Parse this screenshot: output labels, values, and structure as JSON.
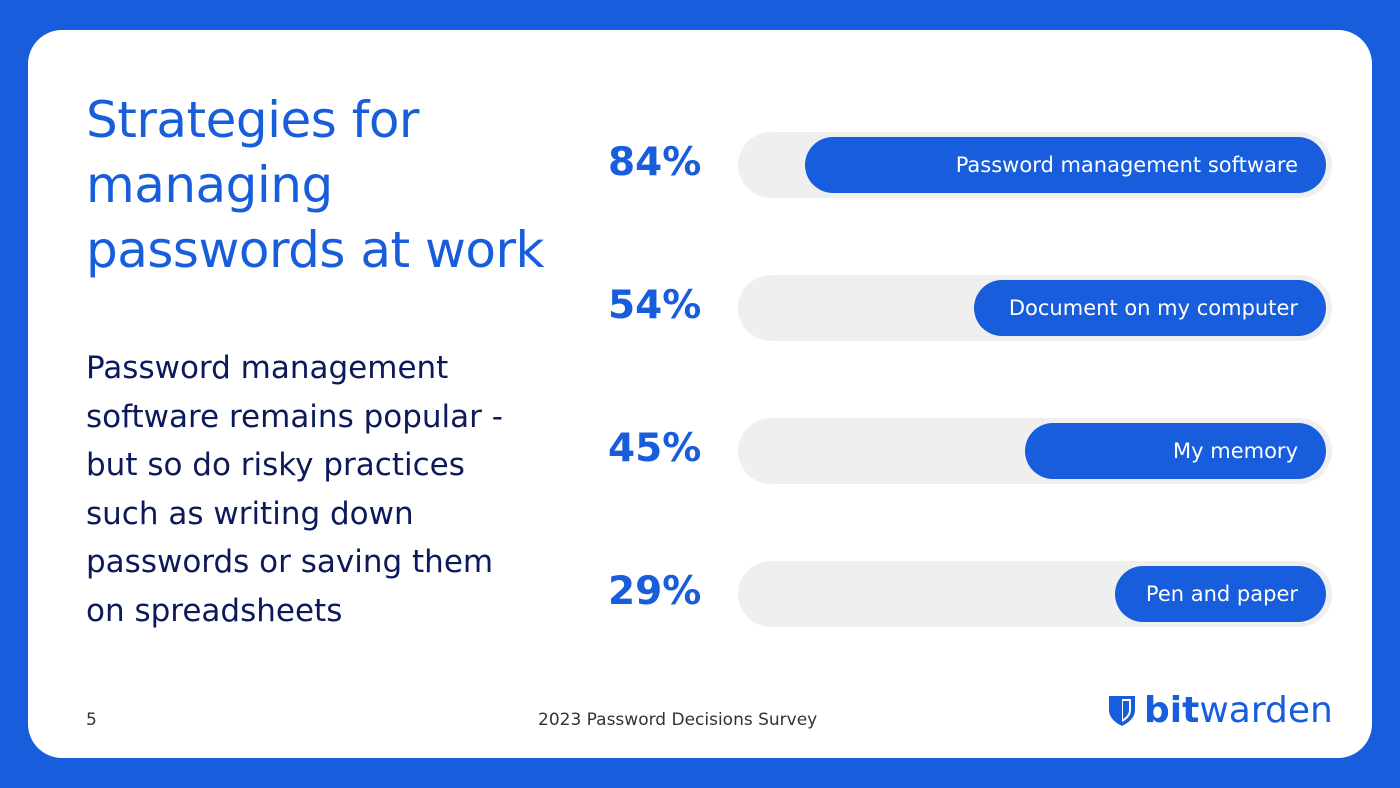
{
  "colors": {
    "background": "#175ddc",
    "accent": "#175ddc",
    "track": "#efefef",
    "body_text": "#0c1a5c"
  },
  "title": "Strategies for managing passwords at work",
  "body": "Password management software remains popular - but so do risky practices such as writing down passwords or saving them on spreadsheets",
  "page_number": "5",
  "footer": "2023 Password Decisions Survey",
  "logo": {
    "bold": "bit",
    "regular": "warden",
    "icon": "shield-icon"
  },
  "chart_data": {
    "type": "bar",
    "orientation": "horizontal",
    "categories": [
      "Password management software",
      "Document on my computer",
      "My memory",
      "Pen and paper"
    ],
    "values": [
      84,
      54,
      45,
      29
    ],
    "labels": [
      "84%",
      "54%",
      "45%",
      "29%"
    ],
    "unit": "%",
    "xlim": [
      0,
      100
    ],
    "grid": false
  }
}
